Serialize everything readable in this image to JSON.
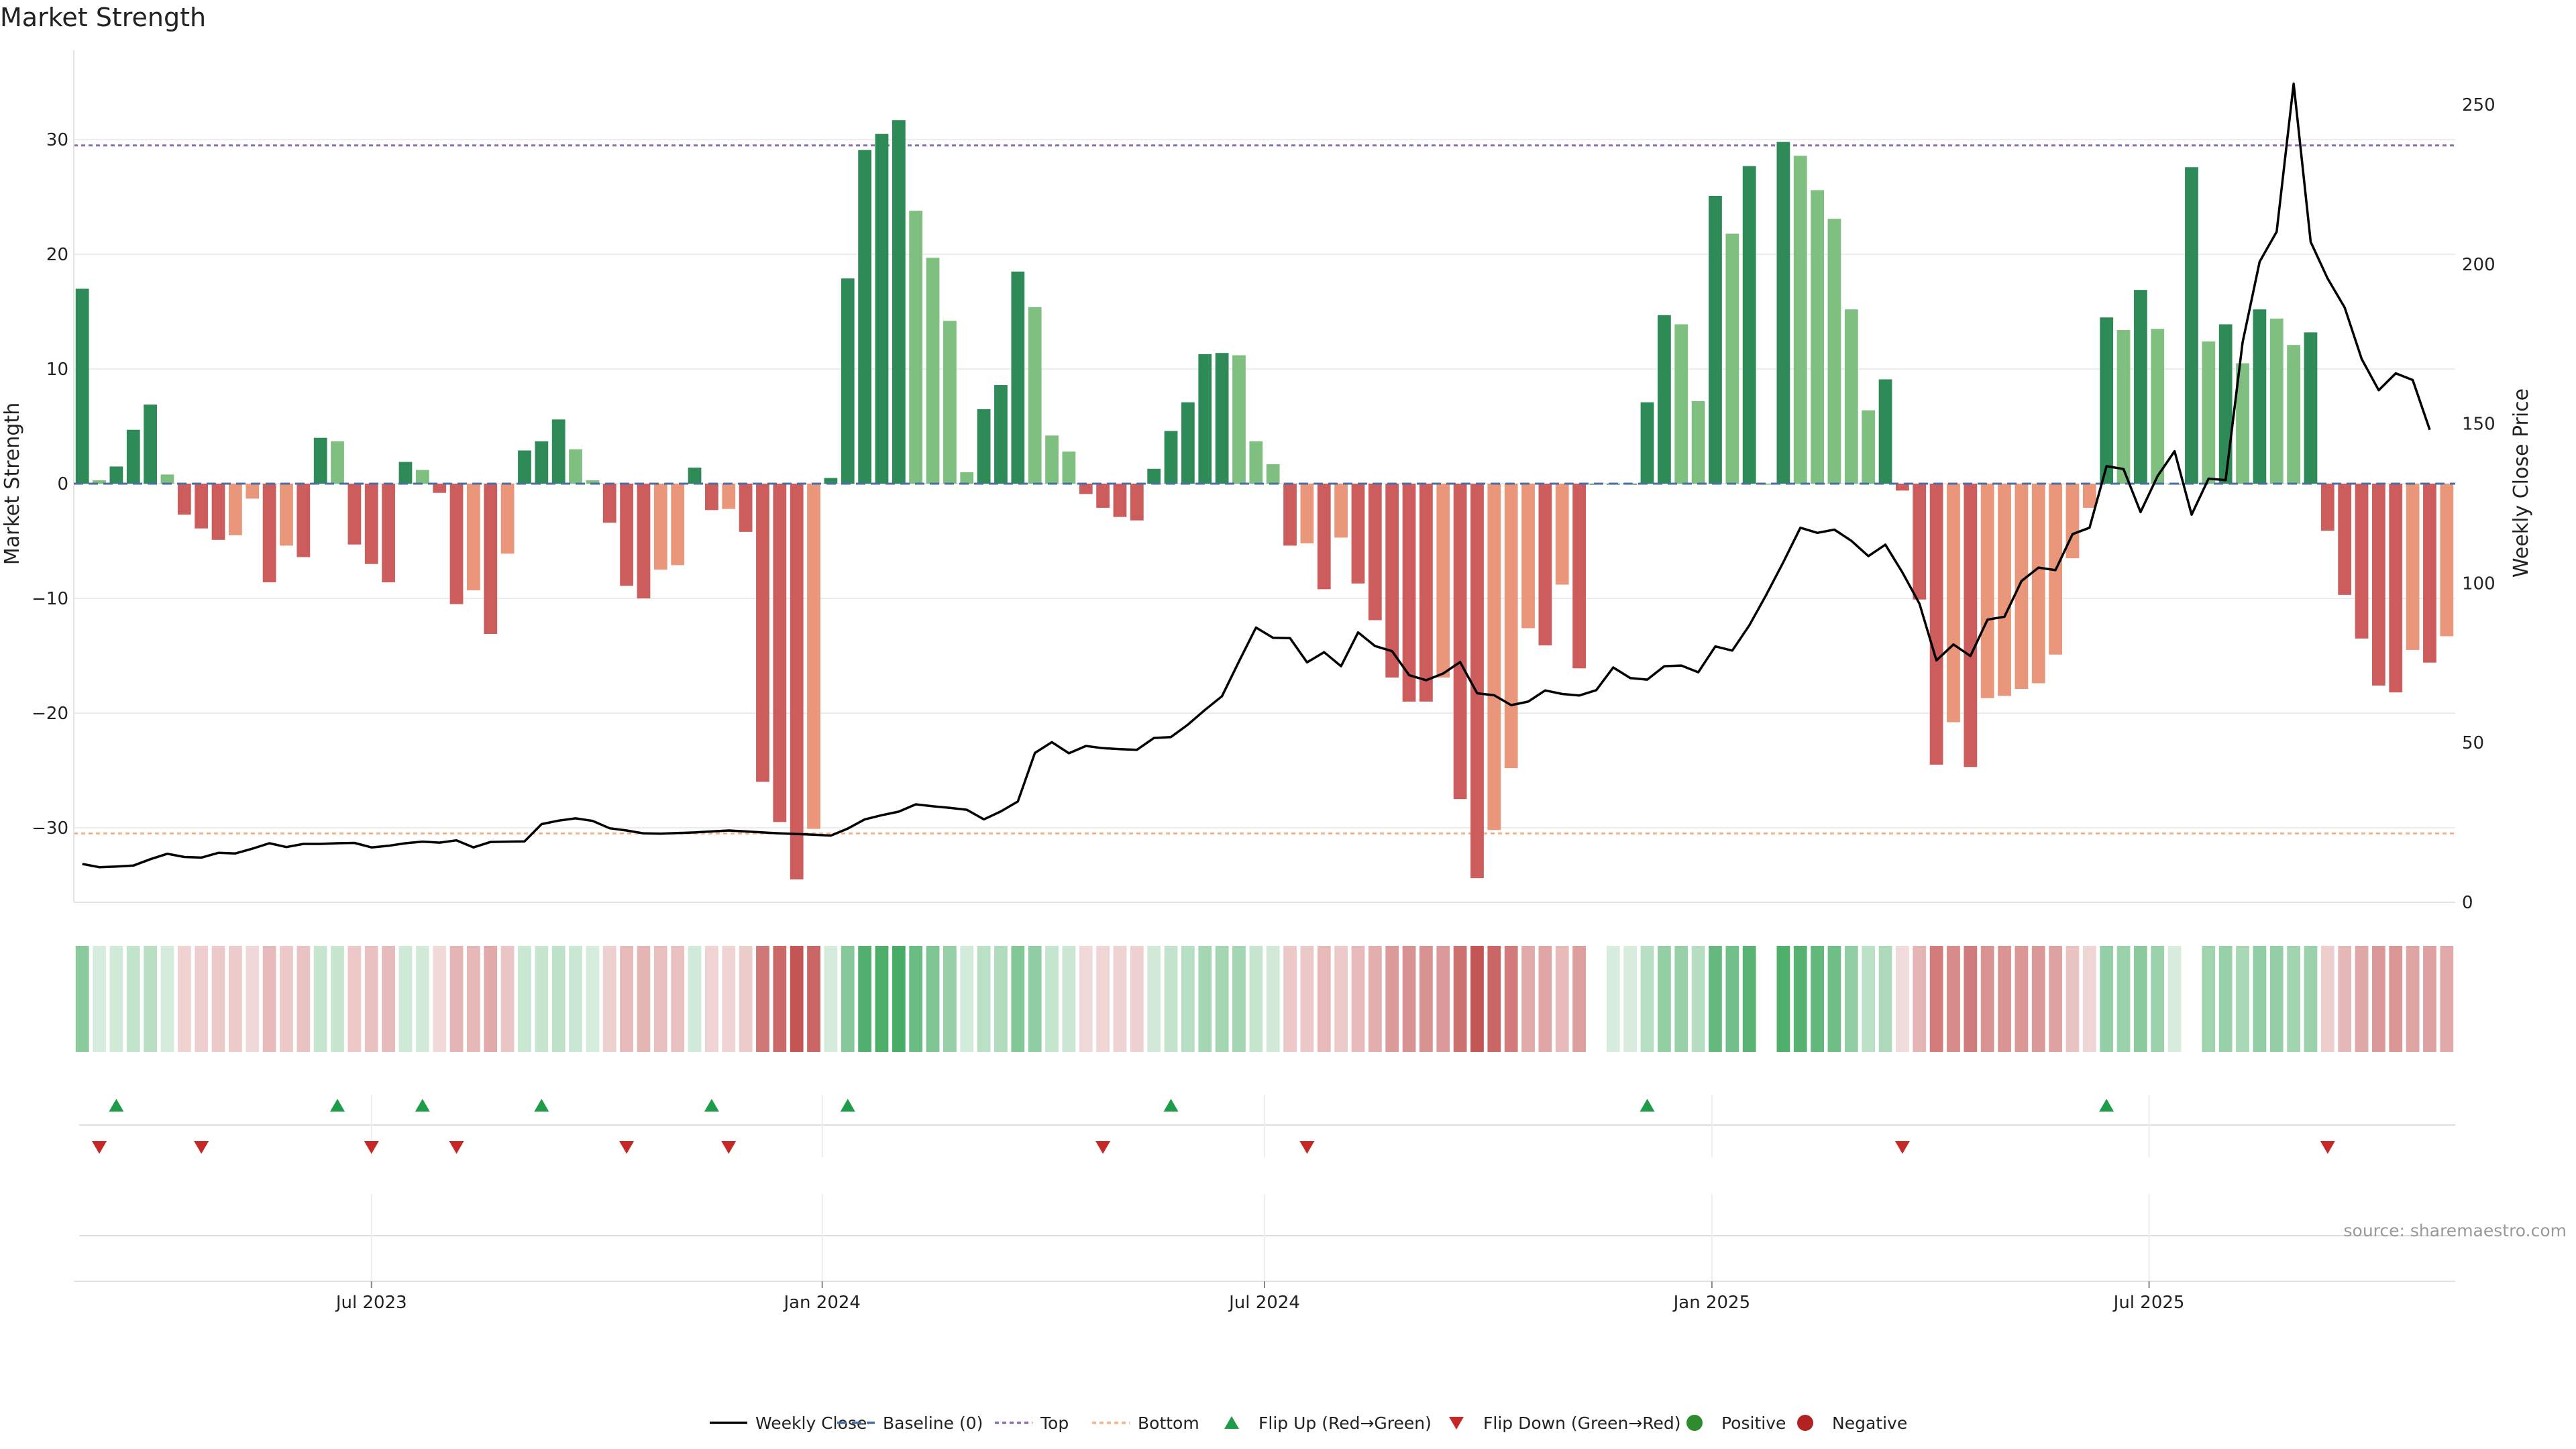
{
  "chart_data": {
    "type": "bar",
    "title": "Market Strength",
    "source_note": "source: sharemaestro.com",
    "ylabel": "Market Strength",
    "y2label": "Weekly Close Price",
    "ylim": [
      -36.5,
      37.5
    ],
    "y_ticks": [
      -30,
      -20,
      -10,
      0,
      10,
      20,
      30
    ],
    "y2lim": [
      0,
      266
    ],
    "y2_ticks": [
      0,
      50,
      100,
      150,
      200,
      250
    ],
    "top_threshold": 29.5,
    "bottom_threshold": -30.5,
    "x_ticks": [
      {
        "label": "Jul 2023",
        "index": 17
      },
      {
        "label": "Jan 2024",
        "index": 43.5
      },
      {
        "label": "Jul 2024",
        "index": 69.5
      },
      {
        "label": "Jan 2025",
        "index": 95.8
      },
      {
        "label": "Jul 2025",
        "index": 121.5
      }
    ],
    "strength": [
      17,
      0.3,
      1.5,
      4.7,
      6.9,
      0.8,
      -2.7,
      -3.9,
      -4.9,
      -4.5,
      -1.3,
      -8.6,
      -5.4,
      -6.4,
      4,
      3.7,
      -5.3,
      -7,
      -8.6,
      1.9,
      1.2,
      -0.8,
      -10.5,
      -9.3,
      -13.1,
      -6.1,
      2.9,
      3.7,
      5.6,
      3,
      0.3,
      -3.4,
      -8.9,
      -10,
      -7.5,
      -7.1,
      1.4,
      -2.3,
      -2.2,
      -4.2,
      -26,
      -29.5,
      -34.5,
      -30.1,
      0.5,
      17.9,
      29.1,
      30.5,
      31.7,
      23.8,
      19.7,
      14.2,
      1,
      6.5,
      8.6,
      18.5,
      15.4,
      4.2,
      2.8,
      -0.9,
      -2.1,
      -2.9,
      -3.2,
      1.3,
      4.6,
      7.1,
      11.3,
      11.4,
      11.2,
      3.7,
      1.7,
      -5.4,
      -5.2,
      -9.2,
      -4.7,
      -8.7,
      -11.9,
      -16.9,
      -19,
      -19,
      -16.9,
      -27.5,
      -34.4,
      -30.2,
      -24.8,
      -12.6,
      -14.1,
      -8.8,
      -16.1,
      0,
      0,
      0,
      7.1,
      14.7,
      13.9,
      7.2,
      25.1,
      21.8,
      27.7,
      0,
      29.8,
      28.6,
      25.6,
      23.1,
      15.2,
      6.4,
      9.1,
      -0.6,
      -10.1,
      -24.5,
      -20.8,
      -24.7,
      -18.7,
      -18.5,
      -17.9,
      -17.4,
      -14.9,
      -6.5,
      -2.1,
      14.5,
      13.4,
      16.9,
      13.5,
      0,
      27.6,
      12.4,
      13.9,
      10.5,
      15.2,
      14.4,
      12.1,
      13.2,
      -4.1,
      -9.7,
      -13.5,
      -17.6,
      -18.2,
      -14.5,
      -15.6,
      -13.3
    ],
    "weekly_close": [
      12,
      11,
      11.2,
      11.5,
      13.5,
      15.2,
      14.2,
      14,
      15.5,
      15.3,
      16.8,
      18.5,
      17.3,
      18.3,
      18.3,
      18.5,
      18.6,
      17.2,
      17.7,
      18.5,
      19,
      18.7,
      19.4,
      17.2,
      18.9,
      19,
      19.1,
      24.5,
      25.6,
      26.3,
      25.5,
      23.2,
      22.5,
      21.6,
      21.5,
      21.7,
      21.9,
      22.2,
      22.5,
      22.2,
      21.9,
      21.6,
      21.4,
      21.2,
      20.9,
      23.1,
      26,
      27.3,
      28.4,
      30.7,
      30.1,
      29.6,
      29,
      26,
      28.5,
      31.6,
      46.8,
      50.2,
      46.7,
      49,
      48.3,
      48,
      47.8,
      51.5,
      51.8,
      55.7,
      60.3,
      64.6,
      75.5,
      86.1,
      82.9,
      82.8,
      75.2,
      78.4,
      74,
      84.6,
      80.3,
      78.7,
      71.2,
      69.6,
      71.7,
      75.3,
      65.5,
      64.9,
      61.8,
      62.9,
      66.4,
      65.3,
      64.8,
      66.5,
      73.6,
      70.3,
      69.8,
      74,
      74.2,
      72.1,
      80.2,
      78.9,
      86.8,
      96.4,
      106.6,
      117.4,
      115.8,
      116.8,
      113.3,
      108.5,
      112.1,
      103.4,
      93.6,
      75.8,
      80.8,
      77.2,
      88.6,
      89.5,
      100.7,
      104.9,
      104.1,
      115.4,
      117.4,
      136.7,
      135.8,
      122.3,
      133.6,
      141.4,
      121.5,
      132.8,
      132.3,
      175.5,
      200.8,
      210.2,
      256.6,
      207,
      195.5,
      186.4,
      170.3,
      160.5,
      165.8,
      163.7,
      148.1
    ],
    "heat_gaps": [
      89,
      99,
      124
    ],
    "flip_up_indices": [
      2,
      15,
      20,
      27,
      37,
      45,
      64,
      92,
      119
    ],
    "flip_down_indices": [
      1,
      7,
      17,
      22,
      32,
      38,
      60,
      72,
      107,
      132
    ],
    "colors": {
      "positive_strong": "#2e8b57",
      "positive_light": "#7fbf7f",
      "negative_strong": "#cd5c5c",
      "negative_light": "#e9967a",
      "price_line": "#000000",
      "baseline": "#4a6fa5",
      "top_line": "#8a6fb3",
      "bottom_line": "#f0b48a",
      "flip_up": "#1e9c4a",
      "flip_down": "#c62828",
      "positive_dot": "#2e8b2e",
      "negative_dot": "#b22222"
    },
    "legend": [
      {
        "key": "weekly-close",
        "label": "Weekly Close"
      },
      {
        "key": "baseline",
        "label": "Baseline (0)"
      },
      {
        "key": "top",
        "label": "Top"
      },
      {
        "key": "bottom",
        "label": "Bottom"
      },
      {
        "key": "flip-up",
        "label": "Flip Up (Red→Green)"
      },
      {
        "key": "flip-down",
        "label": "Flip Down (Green→Red)"
      },
      {
        "key": "positive",
        "label": "Positive"
      },
      {
        "key": "negative",
        "label": "Negative"
      }
    ]
  }
}
